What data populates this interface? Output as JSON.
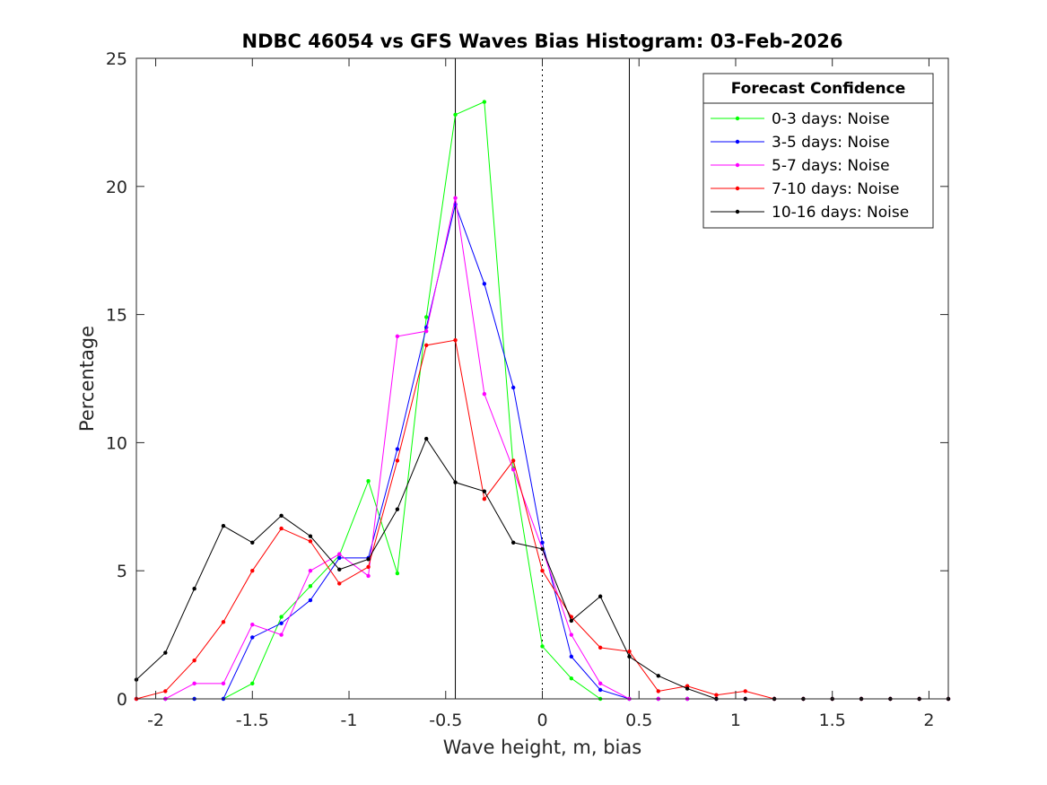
{
  "chart_data": {
    "type": "line",
    "title": "NDBC 46054 vs GFS Waves Bias Histogram: 03-Feb-2026",
    "xlabel": "Wave height, m, bias",
    "ylabel": "Percentage",
    "xlim": [
      -2.1,
      2.1
    ],
    "ylim": [
      0,
      25
    ],
    "xticks": [
      -2,
      -1.5,
      -1,
      -0.5,
      0,
      0.5,
      1,
      1.5,
      2
    ],
    "xtick_labels": [
      "-2",
      "-1.5",
      "-1",
      "-0.5",
      "0",
      "0.5",
      "1",
      "1.5",
      "2"
    ],
    "yticks": [
      0,
      5,
      10,
      15,
      20,
      25
    ],
    "ytick_labels": [
      "0",
      "5",
      "10",
      "15",
      "20",
      "25"
    ],
    "reference_lines": [
      {
        "x": -0.45,
        "style": "solid",
        "color": "#000000"
      },
      {
        "x": 0,
        "style": "dotted",
        "color": "#000000"
      },
      {
        "x": 0.45,
        "style": "solid",
        "color": "#000000"
      }
    ],
    "legend": {
      "title": "Forecast Confidence",
      "position": "top-right"
    },
    "x": [
      -2.1,
      -1.95,
      -1.8,
      -1.65,
      -1.5,
      -1.35,
      -1.2,
      -1.05,
      -0.9,
      -0.75,
      -0.6,
      -0.45,
      -0.3,
      -0.15,
      0,
      0.15,
      0.3,
      0.45,
      0.6,
      0.75,
      0.9,
      1.05,
      1.2,
      1.35,
      1.5,
      1.65,
      1.8,
      1.95,
      2.1
    ],
    "series": [
      {
        "name": "0-3 days: Noise",
        "color": "#00ff00",
        "values": [
          0,
          0,
          0,
          0,
          0.6,
          3.2,
          4.4,
          5.6,
          8.5,
          4.9,
          14.9,
          22.8,
          23.3,
          9,
          2.05,
          0.8,
          0,
          0,
          0,
          0,
          0,
          0,
          0,
          0,
          0,
          0,
          0,
          0,
          0
        ]
      },
      {
        "name": "3-5 days: Noise",
        "color": "#0000ff",
        "values": [
          0,
          0,
          0,
          0,
          2.4,
          2.95,
          3.85,
          5.5,
          5.5,
          9.75,
          14.5,
          19.3,
          16.2,
          12.15,
          6.1,
          1.65,
          0.35,
          0,
          0,
          0,
          0,
          0,
          0,
          0,
          0,
          0,
          0,
          0,
          0
        ]
      },
      {
        "name": "5-7 days: Noise",
        "color": "#ff00ff",
        "values": [
          0,
          0,
          0.6,
          0.6,
          2.9,
          2.5,
          5,
          5.65,
          4.8,
          14.15,
          14.35,
          19.55,
          11.9,
          8.95,
          5.85,
          2.5,
          0.6,
          0,
          0,
          0,
          0,
          0,
          0,
          0,
          0,
          0,
          0,
          0,
          0
        ]
      },
      {
        "name": "7-10 days: Noise",
        "color": "#ff0000",
        "values": [
          0,
          0.3,
          1.5,
          3,
          5,
          6.65,
          6.15,
          4.5,
          5.15,
          9.3,
          13.8,
          14,
          7.8,
          9.3,
          5,
          3.2,
          2,
          1.85,
          0.3,
          0.5,
          0.15,
          0.3,
          0,
          0,
          0,
          0,
          0,
          0,
          0
        ]
      },
      {
        "name": "10-16 days: Noise",
        "color": "#000000",
        "values": [
          0.75,
          1.8,
          4.3,
          6.75,
          6.1,
          7.15,
          6.35,
          5.05,
          5.45,
          7.4,
          10.15,
          8.45,
          8.1,
          6.1,
          5.85,
          3.05,
          4,
          1.65,
          0.9,
          0.4,
          0,
          0,
          0,
          0,
          0,
          0,
          0,
          0,
          0
        ]
      }
    ]
  }
}
